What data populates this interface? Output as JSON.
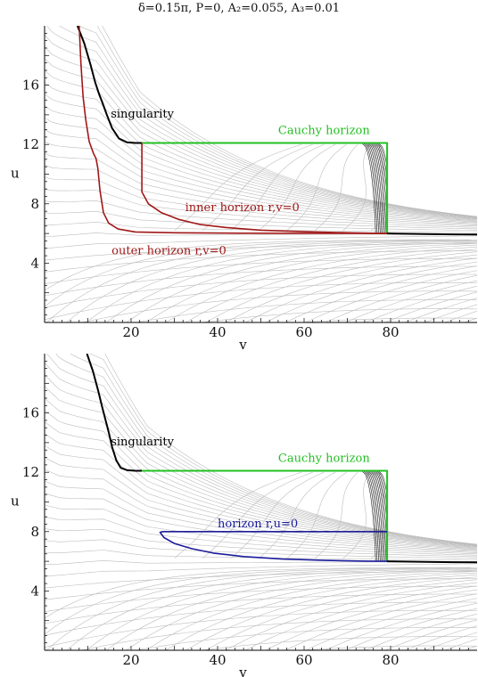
{
  "figure": {
    "title": "δ=0.15π, P=0, A₂=0.055, A₃=0.01"
  },
  "colors": {
    "contour": "#bdbdbd",
    "singularity": "#000000",
    "cauchy": "#22c022",
    "red_horizon": "#a01818",
    "blue_horizon": "#1c1c9c",
    "axis": "#000000"
  },
  "chart_data": [
    {
      "type": "line",
      "title": "",
      "xlabel": "v",
      "ylabel": "u",
      "xlim": [
        0,
        100
      ],
      "ylim": [
        0,
        20
      ],
      "x_ticks": [
        20,
        40,
        60,
        80
      ],
      "y_ticks": [
        4,
        8,
        12,
        16
      ],
      "grid": false,
      "annotations": [
        {
          "key": "singularity",
          "text": "singularity",
          "color": "#000000",
          "x": 15.3,
          "y": 13.8
        },
        {
          "key": "cauchy",
          "text": "Cauchy horizon",
          "color": "#22c022",
          "x": 54,
          "y": 12.7
        },
        {
          "key": "inner",
          "text": "inner horizon r,v=0",
          "color": "#a01818",
          "x": 32.5,
          "y": 7.5
        },
        {
          "key": "outer",
          "text": "outer horizon r,v=0",
          "color": "#a01818",
          "x": 15.5,
          "y": 4.6
        }
      ],
      "series": [
        {
          "name": "singularity",
          "color": "#000000",
          "x": [
            7.6,
            9.2,
            10.6,
            11.7,
            12.6,
            13.4,
            14.4,
            15.6,
            17.2,
            19.0,
            21.0,
            22.5
          ],
          "y": [
            20,
            18.8,
            17.4,
            16.2,
            15.4,
            14.8,
            14.0,
            13.1,
            12.4,
            12.15,
            12.1,
            12.1
          ]
        },
        {
          "name": "Cauchy horizon",
          "color": "#22c022",
          "x": [
            22.5,
            79.2,
            79.2
          ],
          "y": [
            12.1,
            12.1,
            6.0
          ]
        },
        {
          "name": "inner horizon r,v=0",
          "color": "#a01818",
          "x": [
            22.5,
            22.5,
            24,
            27,
            31,
            36,
            42,
            50,
            60,
            70,
            78,
            80
          ],
          "y": [
            12.1,
            8.8,
            8.0,
            7.4,
            6.95,
            6.6,
            6.4,
            6.22,
            6.12,
            6.05,
            6.0,
            6.0
          ]
        },
        {
          "name": "outer horizon r,v=0",
          "color": "#a01818",
          "x": [
            8.0,
            8.4,
            8.9,
            9.5,
            10.3,
            11.3,
            11.9,
            12.3,
            12.8,
            13.6,
            14.8,
            17,
            21,
            30,
            45,
            60,
            78,
            80
          ],
          "y": [
            20,
            17.5,
            15.2,
            13.7,
            12.2,
            11.4,
            11.05,
            10.4,
            8.9,
            7.4,
            6.7,
            6.3,
            6.1,
            6.05,
            6.02,
            6.01,
            6.0,
            6.0
          ]
        },
        {
          "name": "",
          "color": "#000000",
          "x": [
            79.2,
            90,
            100
          ],
          "y": [
            6.0,
            5.95,
            5.93
          ]
        }
      ]
    },
    {
      "type": "line",
      "title": "",
      "xlabel": "v",
      "ylabel": "u",
      "xlim": [
        0,
        100
      ],
      "ylim": [
        0,
        20
      ],
      "x_ticks": [
        20,
        40,
        60,
        80
      ],
      "y_ticks": [
        4,
        8,
        12,
        16
      ],
      "grid": false,
      "annotations": [
        {
          "key": "singularity",
          "text": "singularity",
          "color": "#000000",
          "x": 15.3,
          "y": 13.8
        },
        {
          "key": "cauchy",
          "text": "Cauchy horizon",
          "color": "#22c022",
          "x": 54,
          "y": 12.7
        },
        {
          "key": "blue",
          "text": "horizon r,u=0",
          "color": "#1c1c9c",
          "x": 40,
          "y": 8.3
        }
      ],
      "series": [
        {
          "name": "singularity",
          "color": "#000000",
          "x": [
            9.8,
            11.2,
            12.4,
            13.4,
            14.2,
            14.9,
            15.6,
            16.6,
            17.6,
            19.0,
            21.0,
            22.5
          ],
          "y": [
            20,
            18.8,
            17.5,
            16.3,
            15.4,
            14.6,
            13.7,
            12.8,
            12.3,
            12.15,
            12.1,
            12.1
          ]
        },
        {
          "name": "Cauchy horizon",
          "color": "#22c022",
          "x": [
            22.5,
            79.2,
            79.2
          ],
          "y": [
            12.1,
            12.1,
            6.0
          ]
        },
        {
          "name": "horizon r,u=0",
          "color": "#1c1c9c",
          "x": [
            79.2,
            27.3,
            26.7,
            27.6,
            30,
            34,
            39,
            46,
            55,
            65,
            74,
            79.2
          ],
          "y": [
            8.0,
            8.0,
            7.95,
            7.6,
            7.2,
            6.85,
            6.55,
            6.32,
            6.15,
            6.06,
            6.01,
            6.0
          ]
        },
        {
          "name": "",
          "color": "#000000",
          "x": [
            79.2,
            90,
            100
          ],
          "y": [
            6.0,
            5.95,
            5.93
          ]
        }
      ]
    }
  ]
}
